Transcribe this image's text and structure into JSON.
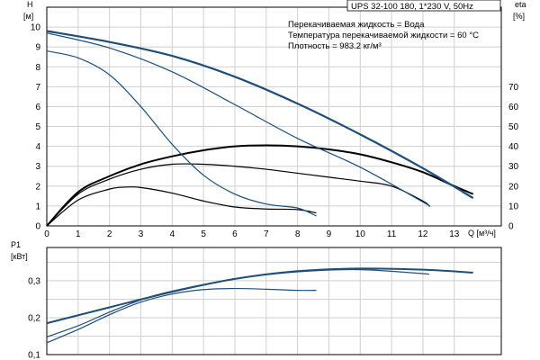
{
  "chart_data": [
    {
      "type": "line",
      "title": "UPS 32-100  180, 1*230 V, 50Hz",
      "annotations": [
        "Перекачиваемая жидкость = Вода",
        "Температура перекачиваемой жидкости = 60 °C",
        "Плотность = 983.2 кг/м³"
      ],
      "xlabel": "Q [м³/ч]",
      "ylabel_left": [
        "H",
        "[м]"
      ],
      "ylabel_right": [
        "eta",
        "[%]"
      ],
      "xlim": [
        0,
        14.5
      ],
      "ylim_left": [
        0,
        11
      ],
      "ylim_right": [
        0,
        110
      ],
      "xticks": [
        0,
        1,
        2,
        3,
        4,
        5,
        6,
        7,
        8,
        9,
        10,
        11,
        12,
        13
      ],
      "yticks_left": [
        0,
        1,
        2,
        3,
        4,
        5,
        6,
        7,
        8,
        9,
        10
      ],
      "yticks_right": [
        0,
        10,
        20,
        30,
        40,
        50,
        60,
        70
      ],
      "grid": true,
      "head_series": [
        {
          "main": true,
          "x": [
            0,
            2,
            4,
            6,
            8,
            10,
            12,
            13.6
          ],
          "y": [
            9.8,
            9.25,
            8.55,
            7.5,
            6.15,
            4.6,
            2.9,
            1.4
          ]
        },
        {
          "main": false,
          "x": [
            0,
            2,
            4,
            6,
            8,
            10,
            12,
            12.2
          ],
          "y": [
            9.7,
            8.95,
            7.75,
            6.1,
            4.4,
            2.95,
            1.2,
            1.0
          ]
        },
        {
          "main": false,
          "x": [
            0,
            1,
            2,
            3,
            4,
            5,
            6,
            7,
            8,
            8.6
          ],
          "y": [
            8.8,
            8.45,
            7.6,
            6.0,
            4.1,
            2.55,
            1.6,
            1.1,
            0.9,
            0.5
          ]
        }
      ],
      "eta_series": [
        {
          "main": true,
          "x": [
            0,
            1,
            2,
            3,
            4,
            5,
            6,
            7,
            8,
            9,
            10,
            11,
            12,
            13,
            13.6
          ],
          "y": [
            0,
            17,
            25,
            31,
            35,
            38,
            40,
            40.5,
            40,
            38.5,
            36,
            32,
            27,
            20,
            16
          ]
        },
        {
          "main": false,
          "x": [
            0,
            1,
            2,
            3,
            4,
            5,
            6,
            7,
            8,
            9,
            10,
            11,
            12,
            12.2
          ],
          "y": [
            0,
            16,
            23.5,
            28.5,
            31,
            31,
            30,
            28.5,
            26.5,
            24.5,
            22.5,
            20,
            12.5,
            10
          ]
        },
        {
          "main": false,
          "x": [
            0,
            1,
            2,
            2.5,
            3,
            4,
            5,
            6,
            7,
            8,
            8.6
          ],
          "y": [
            0,
            13,
            18.5,
            19.5,
            19.3,
            16.5,
            12.5,
            9.5,
            8.5,
            8.2,
            6.5
          ]
        }
      ]
    },
    {
      "type": "line",
      "xlabel": "",
      "ylabel": [
        "P1",
        "[кВт]"
      ],
      "xlim": [
        0,
        14.5
      ],
      "ylim": [
        0.1,
        0.39
      ],
      "yticks": [
        0.1,
        0.2,
        0.3
      ],
      "ytick_labels": [
        "0,1",
        "0,2",
        "0,3"
      ],
      "grid": true,
      "series": [
        {
          "main": true,
          "x": [
            0,
            2,
            4,
            6,
            8,
            10,
            12,
            13.6
          ],
          "y": [
            0.185,
            0.228,
            0.27,
            0.305,
            0.326,
            0.333,
            0.33,
            0.322
          ]
        },
        {
          "main": false,
          "x": [
            0,
            1,
            2,
            3,
            4,
            6,
            8,
            10,
            12.2
          ],
          "y": [
            0.148,
            0.178,
            0.215,
            0.248,
            0.272,
            0.305,
            0.324,
            0.33,
            0.318
          ]
        },
        {
          "main": false,
          "x": [
            0,
            1,
            2,
            3,
            4,
            5,
            6,
            7,
            8,
            8.6
          ],
          "y": [
            0.132,
            0.168,
            0.208,
            0.242,
            0.264,
            0.276,
            0.279,
            0.277,
            0.274,
            0.274
          ]
        }
      ]
    }
  ],
  "colors": {
    "head": "#1f4e79",
    "eta": "#000000",
    "power": "#1f4e79",
    "grid": "#cfcfcf"
  }
}
